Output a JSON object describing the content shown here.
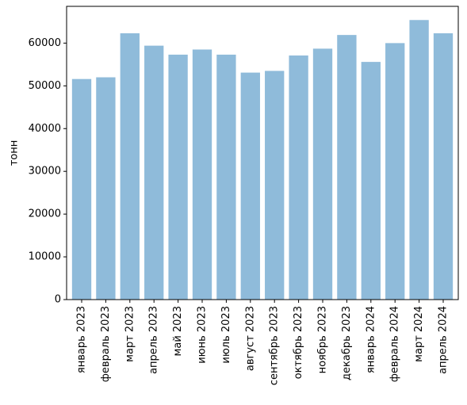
{
  "chart_data": {
    "type": "bar",
    "title": "",
    "xlabel": "",
    "ylabel": "тонн",
    "categories": [
      "январь 2023",
      "февраль 2023",
      "март 2023",
      "апрель 2023",
      "май 2023",
      "июнь 2023",
      "июль 2023",
      "август 2023",
      "сентябрь 2023",
      "октябрь 2023",
      "ноябрь 2023",
      "декабрь 2023",
      "январь 2024",
      "февраль 2024",
      "март 2024",
      "апрель 2024"
    ],
    "values": [
      51600,
      52000,
      62300,
      59400,
      57300,
      58500,
      57300,
      53100,
      53500,
      57100,
      58700,
      61900,
      55600,
      60000,
      65400,
      62300
    ],
    "ylim": [
      0,
      68600
    ],
    "yticks": [
      0,
      10000,
      20000,
      30000,
      40000,
      50000,
      60000
    ],
    "bar_color": "#8fbbda",
    "grid": false,
    "legend": "none"
  }
}
